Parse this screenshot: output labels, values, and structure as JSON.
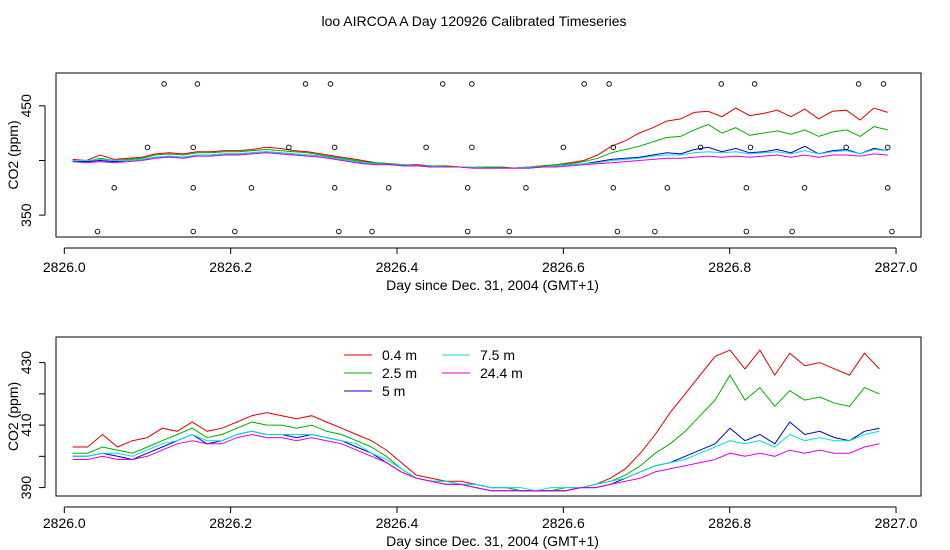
{
  "title": "loo AIRCOA A  Day 120926  Calibrated Timeseries",
  "colors": {
    "0.4 m": "#e00000",
    "2.5 m": "#00b000",
    "5 m": "#0000d0",
    "7.5 m": "#00e0e0",
    "24.4 m": "#e000e0"
  },
  "chart_data": [
    {
      "type": "line",
      "xlabel": "Day since Dec. 31, 2004 (GMT+1)",
      "ylabel": "CO2 (ppm)",
      "xlim": [
        2825.99,
        2827.03
      ],
      "ylim": [
        330,
        480
      ],
      "x_ticks": [
        2826.0,
        2826.2,
        2826.4,
        2826.6,
        2826.8,
        2827.0
      ],
      "x_tick_labels": [
        "2826.0",
        "2826.2",
        "2826.4",
        "2826.6",
        "2826.8",
        "2827.0"
      ],
      "y_ticks": [
        350,
        400,
        450
      ],
      "y_tick_labels": [
        "350",
        "",
        "450"
      ],
      "scatter_points": [
        [
          2826.04,
          335
        ],
        [
          2826.06,
          375
        ],
        [
          2826.1,
          412
        ],
        [
          2826.12,
          470
        ],
        [
          2826.155,
          335
        ],
        [
          2826.155,
          375
        ],
        [
          2826.155,
          412
        ],
        [
          2826.16,
          470
        ],
        [
          2826.205,
          335
        ],
        [
          2826.225,
          375
        ],
        [
          2826.27,
          412
        ],
        [
          2826.29,
          470
        ],
        [
          2826.32,
          470
        ],
        [
          2826.325,
          412
        ],
        [
          2826.325,
          375
        ],
        [
          2826.33,
          335
        ],
        [
          2826.37,
          335
        ],
        [
          2826.39,
          375
        ],
        [
          2826.435,
          412
        ],
        [
          2826.455,
          470
        ],
        [
          2826.485,
          335
        ],
        [
          2826.485,
          375
        ],
        [
          2826.49,
          412
        ],
        [
          2826.49,
          470
        ],
        [
          2826.535,
          335
        ],
        [
          2826.555,
          375
        ],
        [
          2826.6,
          412
        ],
        [
          2826.625,
          470
        ],
        [
          2826.655,
          470
        ],
        [
          2826.66,
          412
        ],
        [
          2826.66,
          375
        ],
        [
          2826.665,
          335
        ],
        [
          2826.71,
          335
        ],
        [
          2826.725,
          375
        ],
        [
          2826.765,
          412
        ],
        [
          2826.79,
          470
        ],
        [
          2826.82,
          335
        ],
        [
          2826.82,
          375
        ],
        [
          2826.825,
          412
        ],
        [
          2826.83,
          470
        ],
        [
          2826.875,
          335
        ],
        [
          2826.89,
          375
        ],
        [
          2826.94,
          412
        ],
        [
          2826.955,
          470
        ],
        [
          2826.985,
          470
        ],
        [
          2826.99,
          412
        ],
        [
          2826.99,
          375
        ],
        [
          2826.995,
          335
        ]
      ],
      "series": [
        {
          "name": "0.4 m",
          "values": [
            401,
            400,
            405,
            401,
            402,
            403,
            406,
            407,
            406,
            408,
            408,
            409,
            409,
            410,
            412,
            411,
            409,
            408,
            406,
            404,
            402,
            400,
            398,
            397,
            396,
            396,
            395,
            395,
            394,
            394,
            394,
            394,
            393,
            394,
            395,
            396,
            398,
            400,
            405,
            413,
            418,
            425,
            430,
            436,
            438,
            444,
            445,
            440,
            448,
            441,
            443,
            446,
            440,
            447,
            438,
            445,
            446,
            437,
            448,
            444
          ]
        },
        {
          "name": "2.5 m",
          "values": [
            400,
            399,
            402,
            400,
            401,
            402,
            405,
            406,
            405,
            407,
            407,
            408,
            408,
            409,
            410,
            409,
            408,
            407,
            405,
            403,
            401,
            399,
            398,
            397,
            396,
            395,
            395,
            395,
            394,
            394,
            394,
            394,
            393,
            394,
            395,
            396,
            397,
            399,
            402,
            407,
            410,
            413,
            417,
            421,
            422,
            428,
            433,
            425,
            430,
            423,
            425,
            427,
            424,
            428,
            422,
            426,
            428,
            422,
            431,
            428
          ]
        },
        {
          "name": "5 m",
          "values": [
            399,
            399,
            400,
            399,
            400,
            401,
            403,
            404,
            403,
            405,
            405,
            406,
            406,
            407,
            408,
            407,
            406,
            405,
            404,
            402,
            400,
            398,
            397,
            396,
            395,
            395,
            394,
            394,
            394,
            393,
            393,
            393,
            393,
            393,
            394,
            395,
            396,
            397,
            399,
            401,
            402,
            403,
            405,
            407,
            406,
            410,
            412,
            408,
            411,
            407,
            408,
            410,
            407,
            413,
            406,
            409,
            410,
            406,
            411,
            409
          ]
        },
        {
          "name": "7.5 m",
          "values": [
            400,
            400,
            401,
            400,
            400,
            401,
            403,
            404,
            403,
            405,
            405,
            406,
            406,
            407,
            408,
            407,
            406,
            405,
            404,
            402,
            400,
            398,
            397,
            396,
            396,
            395,
            395,
            394,
            394,
            394,
            393,
            393,
            393,
            394,
            394,
            395,
            396,
            397,
            398,
            400,
            401,
            402,
            404,
            405,
            405,
            407,
            408,
            407,
            408,
            406,
            407,
            408,
            406,
            409,
            406,
            408,
            409,
            406,
            410,
            409
          ]
        },
        {
          "name": "24.4 m",
          "values": [
            399,
            398,
            399,
            398,
            399,
            400,
            402,
            403,
            402,
            404,
            404,
            405,
            405,
            406,
            407,
            406,
            405,
            404,
            403,
            401,
            399,
            397,
            396,
            396,
            395,
            395,
            394,
            394,
            394,
            393,
            393,
            393,
            393,
            393,
            394,
            394,
            395,
            396,
            397,
            398,
            399,
            400,
            401,
            402,
            402,
            403,
            404,
            403,
            404,
            403,
            404,
            405,
            403,
            405,
            403,
            405,
            405,
            404,
            406,
            405
          ]
        }
      ]
    },
    {
      "type": "line",
      "xlabel": "Day since Dec. 31, 2004 (GMT+1)",
      "ylabel": "CO2 (ppm)",
      "xlim": [
        2825.99,
        2827.03
      ],
      "ylim": [
        387.3,
        438.2
      ],
      "x_ticks": [
        2826.0,
        2826.2,
        2826.4,
        2826.6,
        2826.8,
        2827.0
      ],
      "x_tick_labels": [
        "2826.0",
        "2826.2",
        "2826.4",
        "2826.6",
        "2826.8",
        "2827.0"
      ],
      "y_ticks": [
        390,
        400,
        410,
        420,
        430
      ],
      "y_tick_labels": [
        "390",
        "",
        "410",
        "",
        "430"
      ],
      "legend": {
        "position": "top-left",
        "entries": [
          "0.4 m",
          "2.5 m",
          "5 m",
          "7.5 m",
          "24.4 m"
        ]
      },
      "series": [
        {
          "name": "0.4 m",
          "values": [
            403,
            403,
            407,
            403,
            405,
            406,
            409,
            408,
            411,
            408,
            409,
            411,
            413,
            414,
            413,
            412,
            413,
            411,
            409,
            407,
            405,
            402,
            398,
            394,
            393,
            392,
            392,
            391,
            390,
            390,
            389,
            389,
            389,
            389,
            390,
            391,
            393,
            396,
            401,
            407,
            414,
            420,
            426,
            432,
            434,
            428,
            434,
            426,
            433,
            429,
            430,
            428,
            426,
            433,
            428
          ]
        },
        {
          "name": "2.5 m",
          "values": [
            401,
            401,
            403,
            402,
            401,
            403,
            405,
            407,
            409,
            406,
            407,
            409,
            411,
            410,
            410,
            409,
            410,
            408,
            407,
            405,
            403,
            400,
            396,
            393,
            392,
            392,
            391,
            391,
            390,
            390,
            389,
            389,
            389,
            390,
            390,
            391,
            392,
            394,
            397,
            401,
            404,
            408,
            413,
            418,
            426,
            418,
            422,
            416,
            421,
            418,
            419,
            417,
            416,
            422,
            420
          ]
        },
        {
          "name": "5 m",
          "values": [
            400,
            400,
            401,
            400,
            399,
            401,
            403,
            405,
            407,
            404,
            405,
            407,
            408,
            407,
            407,
            406,
            407,
            406,
            405,
            403,
            401,
            398,
            395,
            393,
            392,
            391,
            391,
            390,
            389,
            389,
            389,
            389,
            389,
            389,
            390,
            390,
            391,
            393,
            395,
            397,
            398,
            400,
            402,
            404,
            409,
            405,
            407,
            404,
            411,
            407,
            408,
            406,
            405,
            408,
            409
          ]
        },
        {
          "name": "7.5 m",
          "values": [
            400,
            400,
            401,
            401,
            400,
            402,
            404,
            405,
            407,
            405,
            405,
            407,
            408,
            407,
            407,
            407,
            407,
            406,
            405,
            404,
            401,
            399,
            396,
            393,
            392,
            392,
            391,
            391,
            390,
            390,
            390,
            389,
            390,
            390,
            390,
            391,
            392,
            393,
            395,
            397,
            398,
            399,
            401,
            403,
            405,
            404,
            405,
            403,
            407,
            405,
            406,
            405,
            405,
            407,
            408
          ]
        },
        {
          "name": "24.4 m",
          "values": [
            399,
            399,
            400,
            399,
            399,
            400,
            402,
            404,
            405,
            404,
            404,
            406,
            407,
            406,
            406,
            405,
            406,
            405,
            404,
            402,
            400,
            398,
            395,
            393,
            392,
            391,
            391,
            390,
            389,
            389,
            389,
            389,
            389,
            389,
            390,
            390,
            391,
            392,
            393,
            395,
            396,
            397,
            398,
            399,
            401,
            400,
            401,
            400,
            402,
            401,
            402,
            401,
            401,
            403,
            404
          ]
        }
      ]
    }
  ]
}
